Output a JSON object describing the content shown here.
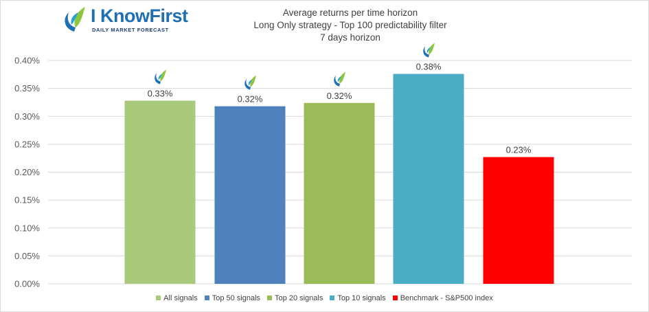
{
  "logo": {
    "name": "I KnowFirst",
    "tagline": "Daily Market Forecast"
  },
  "chart_data": {
    "type": "bar",
    "title": "Average returns per time horizon",
    "subtitle": "Long Only strategy - Top 100 predictability filter",
    "subtitle2": "7 days horizon",
    "categories": [
      "All signals",
      "Top 50 signals",
      "Top 20 signals",
      "Top 10 signals",
      "Benchmark - S&P500 index"
    ],
    "values": [
      0.33,
      0.32,
      0.32,
      0.38,
      0.23
    ],
    "bar_heights_pct": [
      0.328,
      0.318,
      0.324,
      0.376,
      0.227
    ],
    "data_labels": [
      "0.33%",
      "0.32%",
      "0.32%",
      "0.38%",
      "0.23%"
    ],
    "colors": [
      "#a9c97c",
      "#4f81bd",
      "#9bbb59",
      "#4bacc6",
      "#ff0000"
    ],
    "marker_icon": [
      "leaf-logo-icon",
      "leaf-logo-icon",
      "leaf-logo-icon",
      "leaf-logo-icon",
      null
    ],
    "ylim": [
      0,
      0.4
    ],
    "yticks": [
      0,
      0.05,
      0.1,
      0.15,
      0.2,
      0.25,
      0.3,
      0.35,
      0.4
    ],
    "ytick_labels": [
      "0.00%",
      "0.05%",
      "0.10%",
      "0.15%",
      "0.20%",
      "0.25%",
      "0.30%",
      "0.35%",
      "0.40%"
    ],
    "xlabel": "",
    "ylabel": "",
    "grid": true,
    "legend": "bottom"
  }
}
